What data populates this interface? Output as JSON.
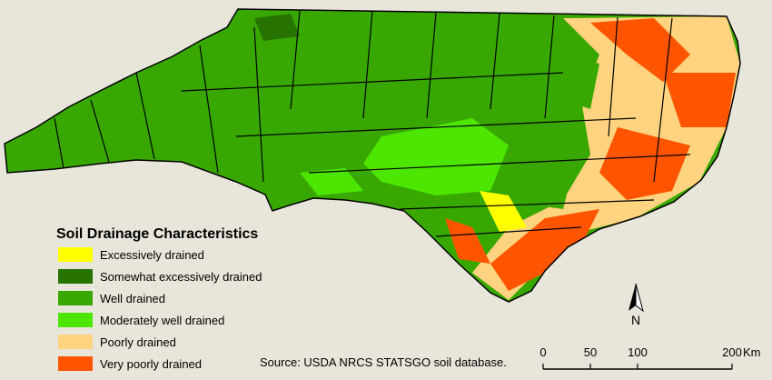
{
  "legend": {
    "title": "Soil Drainage Characteristics",
    "items": [
      {
        "label": "Excessively drained",
        "color": "#ffff00"
      },
      {
        "label": "Somewhat excessively drained",
        "color": "#267300"
      },
      {
        "label": "Well drained",
        "color": "#38a800"
      },
      {
        "label": "Moderately well drained",
        "color": "#4ce600"
      },
      {
        "label": "Poorly drained",
        "color": "#ffd37f"
      },
      {
        "label": "Very poorly drained",
        "color": "#ff5500"
      }
    ]
  },
  "source": "Source: USDA NRCS STATSGO soil database.",
  "north_arrow": {
    "label": "N"
  },
  "scale_bar": {
    "ticks": [
      0,
      50,
      100,
      200
    ],
    "unit": "Km"
  }
}
